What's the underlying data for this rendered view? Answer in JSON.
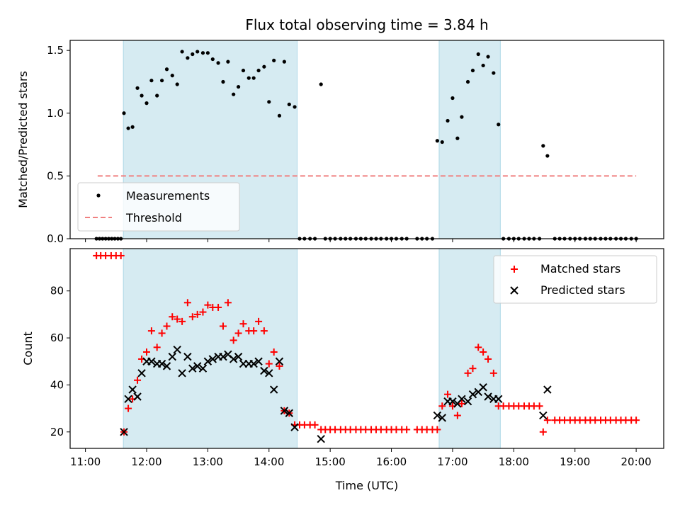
{
  "chart_data": [
    {
      "type": "scatter",
      "title": "Flux total observing time = 3.84 h",
      "xlabel": "",
      "ylabel": "Matched/Predicted stars",
      "xlim": [
        10.75,
        20.45
      ],
      "ylim": [
        0,
        1.58
      ],
      "x_ticks": [
        {
          "value": 11,
          "label": "11:00"
        },
        {
          "value": 12,
          "label": "12:00"
        },
        {
          "value": 13,
          "label": "13:00"
        },
        {
          "value": 14,
          "label": "14:00"
        },
        {
          "value": 15,
          "label": "15:00"
        },
        {
          "value": 16,
          "label": "16:00"
        },
        {
          "value": 17,
          "label": "17:00"
        },
        {
          "value": 18,
          "label": "18:00"
        },
        {
          "value": 19,
          "label": "19:00"
        },
        {
          "value": 20,
          "label": "20:00"
        }
      ],
      "y_ticks": [
        {
          "value": 0,
          "label": "0.0"
        },
        {
          "value": 0.5,
          "label": "0.5"
        },
        {
          "value": 1.0,
          "label": "1.0"
        },
        {
          "value": 1.5,
          "label": "1.5"
        }
      ],
      "shaded_spans": [
        [
          11.62,
          14.46
        ],
        [
          16.78,
          17.78
        ]
      ],
      "shade_color": "#add8e6",
      "legend_position": "lower left",
      "grid": false,
      "series": [
        {
          "name": "Measurements",
          "marker": "dot",
          "color": "#000000",
          "x": [
            11.18,
            11.23,
            11.28,
            11.33,
            11.38,
            11.43,
            11.48,
            11.53,
            11.58,
            11.63,
            11.7,
            11.77,
            11.85,
            11.92,
            12.0,
            12.08,
            12.17,
            12.25,
            12.33,
            12.42,
            12.5,
            12.58,
            12.67,
            12.75,
            12.83,
            12.92,
            13.0,
            13.08,
            13.17,
            13.25,
            13.33,
            13.42,
            13.5,
            13.58,
            13.67,
            13.75,
            13.83,
            13.92,
            14.0,
            14.08,
            14.17,
            14.25,
            14.33,
            14.42,
            14.5,
            14.58,
            14.67,
            14.75,
            14.85,
            14.92,
            15.0,
            15.08,
            15.17,
            15.25,
            15.33,
            15.42,
            15.5,
            15.58,
            15.67,
            15.75,
            15.83,
            15.92,
            16.0,
            16.08,
            16.17,
            16.25,
            16.42,
            16.5,
            16.58,
            16.67,
            16.75,
            16.83,
            16.92,
            17.0,
            17.08,
            17.15,
            17.25,
            17.33,
            17.42,
            17.5,
            17.58,
            17.67,
            17.75,
            17.83,
            17.92,
            18.0,
            18.08,
            18.17,
            18.25,
            18.33,
            18.42,
            18.48,
            18.55,
            18.67,
            18.75,
            18.83,
            18.92,
            19.0,
            19.08,
            19.17,
            19.25,
            19.33,
            19.42,
            19.5,
            19.58,
            19.67,
            19.75,
            19.83,
            19.92,
            20.0
          ],
          "y": [
            0,
            0,
            0,
            0,
            0,
            0,
            0,
            0,
            0,
            1.0,
            0.88,
            0.89,
            1.2,
            1.14,
            1.08,
            1.26,
            1.14,
            1.26,
            1.35,
            1.3,
            1.23,
            1.49,
            1.44,
            1.47,
            1.49,
            1.48,
            1.48,
            1.43,
            1.4,
            1.25,
            1.41,
            1.15,
            1.21,
            1.34,
            1.28,
            1.28,
            1.34,
            1.37,
            1.09,
            1.42,
            0.98,
            1.41,
            1.07,
            1.05,
            0,
            0,
            0,
            0,
            1.23,
            0,
            0,
            0,
            0,
            0,
            0,
            0,
            0,
            0,
            0,
            0,
            0,
            0,
            0,
            0,
            0,
            0,
            0,
            0,
            0,
            0,
            0.78,
            0.77,
            0.94,
            1.12,
            0.8,
            0.97,
            1.25,
            1.34,
            1.47,
            1.38,
            1.45,
            1.32,
            0.91,
            0,
            0,
            0,
            0,
            0,
            0,
            0,
            0,
            0.74,
            0.66,
            0,
            0,
            0,
            0,
            0,
            0,
            0,
            0,
            0,
            0,
            0,
            0,
            0,
            0,
            0,
            0,
            0
          ]
        },
        {
          "name": "Threshold",
          "marker": "dashed-line",
          "color": "#f08080",
          "x": [
            11.2,
            20.0
          ],
          "y": [
            0.5,
            0.5
          ]
        }
      ]
    },
    {
      "type": "scatter",
      "title": "",
      "xlabel": "Time (UTC)",
      "ylabel": "Count",
      "xlim": [
        10.75,
        20.45
      ],
      "ylim": [
        13,
        98
      ],
      "x_ticks": [
        {
          "value": 11,
          "label": "11:00"
        },
        {
          "value": 12,
          "label": "12:00"
        },
        {
          "value": 13,
          "label": "13:00"
        },
        {
          "value": 14,
          "label": "14:00"
        },
        {
          "value": 15,
          "label": "15:00"
        },
        {
          "value": 16,
          "label": "16:00"
        },
        {
          "value": 17,
          "label": "17:00"
        },
        {
          "value": 18,
          "label": "18:00"
        },
        {
          "value": 19,
          "label": "19:00"
        },
        {
          "value": 20,
          "label": "20:00"
        }
      ],
      "y_ticks": [
        {
          "value": 20,
          "label": "20"
        },
        {
          "value": 40,
          "label": "40"
        },
        {
          "value": 60,
          "label": "60"
        },
        {
          "value": 80,
          "label": "80"
        }
      ],
      "shaded_spans": [
        [
          11.62,
          14.46
        ],
        [
          16.78,
          17.78
        ]
      ],
      "shade_color": "#add8e6",
      "legend_position": "upper right",
      "grid": false,
      "series": [
        {
          "name": "Matched stars",
          "marker": "plus",
          "color": "#ff0000",
          "x": [
            11.18,
            11.25,
            11.33,
            11.42,
            11.5,
            11.58,
            11.63,
            11.7,
            11.77,
            11.85,
            11.92,
            12.0,
            12.08,
            12.17,
            12.25,
            12.33,
            12.42,
            12.5,
            12.58,
            12.67,
            12.75,
            12.83,
            12.92,
            13.0,
            13.08,
            13.17,
            13.25,
            13.33,
            13.42,
            13.5,
            13.58,
            13.67,
            13.75,
            13.83,
            13.92,
            14.0,
            14.08,
            14.17,
            14.25,
            14.33,
            14.42,
            14.5,
            14.58,
            14.67,
            14.75,
            14.85,
            14.92,
            15.0,
            15.08,
            15.17,
            15.25,
            15.33,
            15.42,
            15.5,
            15.58,
            15.67,
            15.75,
            15.83,
            15.92,
            16.0,
            16.08,
            16.17,
            16.25,
            16.42,
            16.5,
            16.58,
            16.67,
            16.75,
            16.83,
            16.92,
            17.0,
            17.08,
            17.15,
            17.25,
            17.33,
            17.42,
            17.5,
            17.58,
            17.67,
            17.75,
            17.83,
            17.92,
            18.0,
            18.08,
            18.17,
            18.25,
            18.33,
            18.42,
            18.48,
            18.55,
            18.67,
            18.75,
            18.83,
            18.92,
            19.0,
            19.08,
            19.17,
            19.25,
            19.33,
            19.42,
            19.5,
            19.58,
            19.67,
            19.75,
            19.83,
            19.92,
            20.0
          ],
          "y": [
            95,
            95,
            95,
            95,
            95,
            95,
            20,
            30,
            34,
            42,
            51,
            54,
            63,
            56,
            62,
            65,
            69,
            68,
            67,
            75,
            69,
            70,
            71,
            74,
            73,
            73,
            65,
            75,
            59,
            62,
            66,
            63,
            63,
            67,
            63,
            49,
            54,
            48,
            29,
            28,
            23,
            23,
            23,
            23,
            23,
            21,
            21,
            21,
            21,
            21,
            21,
            21,
            21,
            21,
            21,
            21,
            21,
            21,
            21,
            21,
            21,
            21,
            21,
            21,
            21,
            21,
            21,
            21,
            31,
            36,
            31,
            27,
            32,
            45,
            47,
            56,
            54,
            51,
            45,
            31,
            31,
            31,
            31,
            31,
            31,
            31,
            31,
            31,
            20,
            25,
            25,
            25,
            25,
            25,
            25,
            25,
            25,
            25,
            25,
            25,
            25,
            25,
            25,
            25,
            25,
            25,
            25
          ]
        },
        {
          "name": "Predicted stars",
          "marker": "x",
          "color": "#000000",
          "x": [
            11.63,
            11.7,
            11.77,
            11.85,
            11.92,
            12.0,
            12.08,
            12.17,
            12.25,
            12.33,
            12.42,
            12.5,
            12.58,
            12.67,
            12.75,
            12.83,
            12.92,
            13.0,
            13.08,
            13.17,
            13.25,
            13.33,
            13.42,
            13.5,
            13.58,
            13.67,
            13.75,
            13.83,
            13.92,
            14.0,
            14.08,
            14.17,
            14.25,
            14.33,
            14.42,
            14.85,
            16.75,
            16.83,
            16.92,
            17.0,
            17.08,
            17.15,
            17.25,
            17.33,
            17.42,
            17.5,
            17.58,
            17.67,
            17.75,
            18.48,
            18.55
          ],
          "y": [
            20,
            34,
            38,
            35,
            45,
            50,
            50,
            49,
            49,
            48,
            52,
            55,
            45,
            52,
            47,
            48,
            47,
            50,
            51,
            52,
            52,
            53,
            51,
            52,
            49,
            49,
            49,
            50,
            46,
            45,
            38,
            50,
            29,
            28,
            22,
            17,
            27,
            26,
            33,
            33,
            32,
            34,
            33,
            36,
            37,
            39,
            35,
            34,
            34,
            27,
            38
          ]
        }
      ]
    }
  ]
}
